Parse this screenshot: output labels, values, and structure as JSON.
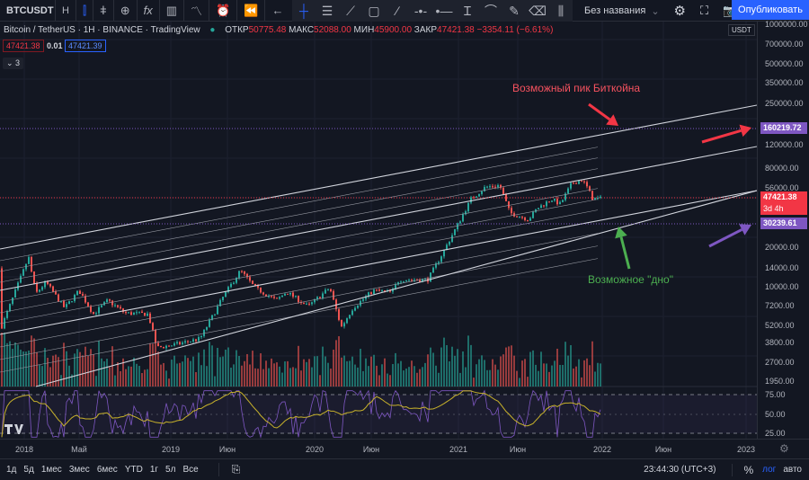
{
  "toolbar": {
    "symbol": "BTCUSDT",
    "interval": "H",
    "layout_name": "Без названия",
    "publish": "Опубликовать",
    "icons": [
      "candles-icon",
      "bars-icon",
      "chevron-down-icon",
      "add-compare-icon",
      "indicators-icon",
      "chevron-down-icon",
      "financials-icon",
      "templates-icon",
      "alert-icon",
      "replay-icon",
      "undo-icon"
    ],
    "draw_icons": [
      "crosshair-icon",
      "lines-icon",
      "trendline-icon",
      "rectangle-icon",
      "ray-icon",
      "horizontal-ray-icon",
      "horizontal-line-icon",
      "text-icon",
      "curve-icon",
      "brush-icon",
      "eraser-icon",
      "long-position-icon"
    ]
  },
  "legend": {
    "title": "Bitcoin / TetherUS · 1H · BINANCE · TradingView",
    "open_label": "ОТКР",
    "open": "50775.48",
    "high_label": "МАКС",
    "high": "52088.00",
    "low_label": "МИН",
    "low": "45900.00",
    "close_label": "ЗАКР",
    "close": "47421.38",
    "change": "−3354.11 (−6.61%)",
    "bid": "47421.38",
    "spread": "0.01",
    "ask": "47421.39",
    "collapsed_count": "3"
  },
  "price_axis": {
    "currency": "USDT",
    "labels": [
      "1000000.00",
      "700000.00",
      "500000.00",
      "350000.00",
      "250000.00",
      "120000.00",
      "80000.00",
      "56000.00",
      "20000.00",
      "14000.00",
      "10000.00",
      "7200.00",
      "5200.00",
      "3800.00",
      "2700.00",
      "1950.00"
    ],
    "rsi_labels": [
      "75.00",
      "50.00",
      "25.00"
    ],
    "tags": {
      "peak": "160219.72",
      "last": "47421.38",
      "countdown": "3d 4h",
      "bottom": "30239.61"
    }
  },
  "time_axis": [
    "2018",
    "Май",
    "2019",
    "Июн",
    "2020",
    "Июн",
    "2021",
    "Июн",
    "2022",
    "Июн",
    "2023"
  ],
  "annotations": {
    "peak": "Возможный пик Биткойна",
    "bottom": "Возможное \"дно\""
  },
  "bottom_bar": {
    "ranges": [
      "1д",
      "5д",
      "1мес",
      "3мес",
      "6мес",
      "YTD",
      "1г",
      "5л",
      "Все"
    ],
    "clock": "23:44:30 (UTC+3)",
    "percent": "%",
    "log": "лог",
    "auto": "авто"
  },
  "colors": {
    "up": "#26a69a",
    "down": "#ef5350",
    "peak_arrow": "#f23645",
    "bottom_arrow": "#4caf50",
    "level": "#7e57c2",
    "accent": "#2962ff",
    "rsi": "#7e57c2",
    "rsi_ma": "#c8b22b"
  },
  "price_path": [
    [
      2018.0,
      14000
    ],
    [
      2018.03,
      17000
    ],
    [
      2018.08,
      9000
    ],
    [
      2018.15,
      11000
    ],
    [
      2018.28,
      7000
    ],
    [
      2018.38,
      9500
    ],
    [
      2018.48,
      6300
    ],
    [
      2018.58,
      8000
    ],
    [
      2018.7,
      6400
    ],
    [
      2018.86,
      6300
    ],
    [
      2018.92,
      3500
    ],
    [
      2019.05,
      3700
    ],
    [
      2019.22,
      4100
    ],
    [
      2019.38,
      8500
    ],
    [
      2019.5,
      13500
    ],
    [
      2019.6,
      10000
    ],
    [
      2019.75,
      8000
    ],
    [
      2019.82,
      9300
    ],
    [
      2019.97,
      7200
    ],
    [
      2020.12,
      10000
    ],
    [
      2020.2,
      5000
    ],
    [
      2020.28,
      7000
    ],
    [
      2020.42,
      9500
    ],
    [
      2020.55,
      9200
    ],
    [
      2020.6,
      11500
    ],
    [
      2020.8,
      11500
    ],
    [
      2020.9,
      18000
    ],
    [
      2021.0,
      29000
    ],
    [
      2021.1,
      47000
    ],
    [
      2021.2,
      58000
    ],
    [
      2021.3,
      60000
    ],
    [
      2021.37,
      37000
    ],
    [
      2021.5,
      33000
    ],
    [
      2021.56,
      40000
    ],
    [
      2021.66,
      47000
    ],
    [
      2021.72,
      43000
    ],
    [
      2021.8,
      62000
    ],
    [
      2021.87,
      66000
    ],
    [
      2021.91,
      57000
    ],
    [
      2021.94,
      48000
    ],
    [
      2021.96,
      47421
    ]
  ]
}
